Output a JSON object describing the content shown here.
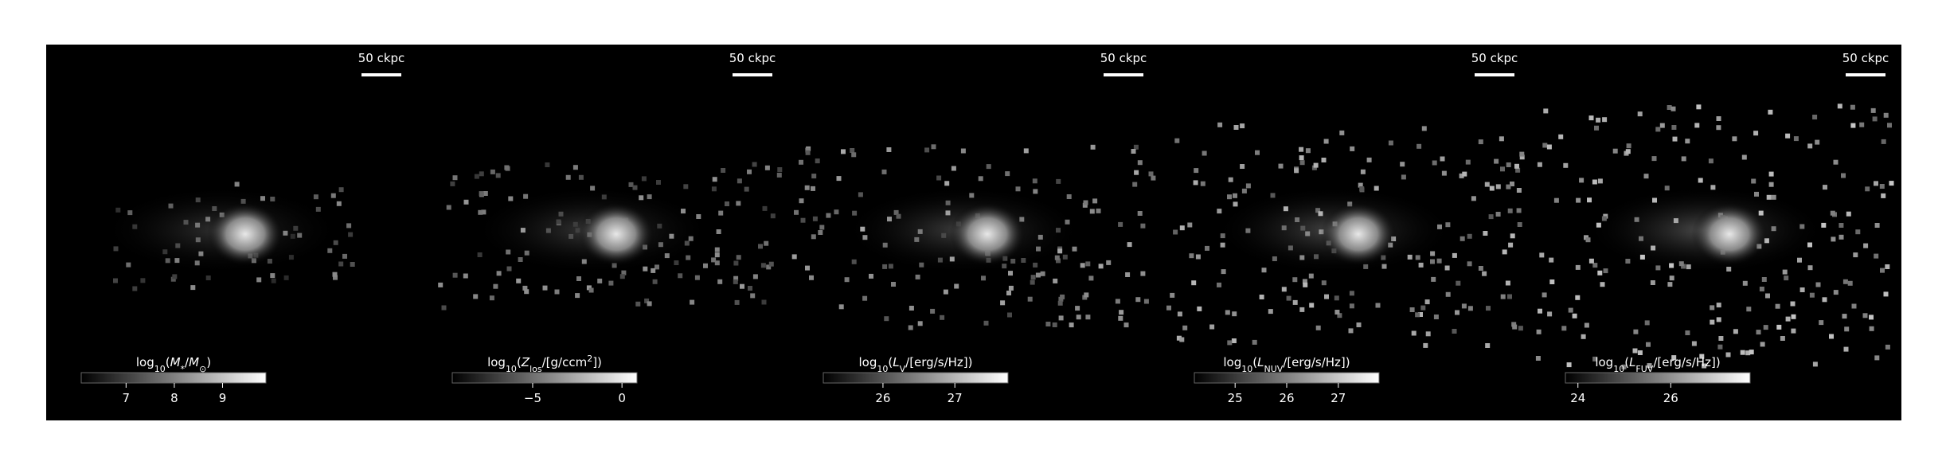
{
  "panels": [
    {
      "scale_bar_label": "50 ckpc",
      "colorbar": {
        "label": [
          {
            "text": "log"
          },
          {
            "text": "10",
            "sub": true
          },
          {
            "text": "("
          },
          {
            "text": "M",
            "italic": true
          },
          {
            "text": "*",
            "sub": true
          },
          {
            "text": "/"
          },
          {
            "text": "M",
            "italic": true
          },
          {
            "text": "⊙",
            "sub": true
          },
          {
            "text": ")"
          }
        ],
        "clim": [
          6.07,
          9.9
        ],
        "ticks": [
          7,
          8,
          9
        ]
      }
    },
    {
      "scale_bar_label": "50 ckpc",
      "colorbar": {
        "label": [
          {
            "text": "log"
          },
          {
            "text": "10",
            "sub": true
          },
          {
            "text": "("
          },
          {
            "text": "Z",
            "italic": true
          },
          {
            "text": "los",
            "sub": true
          },
          {
            "text": "/[g/ccm"
          },
          {
            "text": "2",
            "sup": true
          },
          {
            "text": "])"
          }
        ],
        "clim": [
          -9.5,
          0.84
        ],
        "ticks": [
          {
            "value": -5,
            "label": "−5"
          },
          0
        ]
      }
    },
    {
      "scale_bar_label": "50 ckpc",
      "colorbar": {
        "label": [
          {
            "text": "log"
          },
          {
            "text": "10",
            "sub": true
          },
          {
            "text": "("
          },
          {
            "text": "L",
            "italic": true
          },
          {
            "text": "V",
            "sub": true
          },
          {
            "text": "/[erg/s/Hz])"
          }
        ],
        "clim": [
          25.17,
          27.74
        ],
        "ticks": [
          26,
          27
        ]
      }
    },
    {
      "scale_bar_label": "50 ckpc",
      "colorbar": {
        "label": [
          {
            "text": "log"
          },
          {
            "text": "10",
            "sub": true
          },
          {
            "text": "("
          },
          {
            "text": "L",
            "italic": true
          },
          {
            "text": "NUV",
            "sub": true
          },
          {
            "text": "/[erg/s/Hz])"
          }
        ],
        "clim": [
          24.21,
          27.79
        ],
        "ticks": [
          25,
          26,
          27
        ]
      }
    },
    {
      "scale_bar_label": "50 ckpc",
      "colorbar": {
        "label": [
          {
            "text": "log"
          },
          {
            "text": "10",
            "sub": true
          },
          {
            "text": "("
          },
          {
            "text": "L",
            "italic": true
          },
          {
            "text": "FUV",
            "sub": true
          },
          {
            "text": "/[erg/s/Hz])"
          }
        ],
        "clim": [
          23.73,
          27.71
        ],
        "ticks": [
          24,
          26
        ]
      }
    }
  ]
}
